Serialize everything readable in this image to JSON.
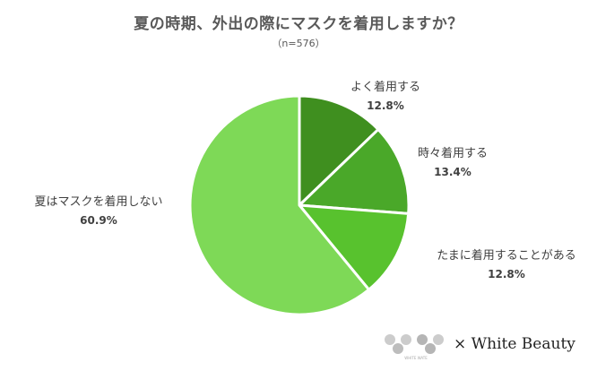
{
  "chart_data": {
    "type": "pie",
    "title": "夏の時期、外出の際にマスクを着用しますか？",
    "subtitle": "（n=576）",
    "categories": [
      "よく着用する",
      "時々着用する",
      "たまに着用することがある",
      "夏はマスクを着用しない"
    ],
    "values": [
      12.8,
      13.4,
      12.8,
      60.9
    ],
    "value_labels": [
      "12.8%",
      "13.4%",
      "12.8%",
      "60.9%"
    ],
    "colors": [
      "#3f8f1f",
      "#4aa829",
      "#58c22e",
      "#7ed957"
    ],
    "start_angle": "12 o'clock, clockwise",
    "legend": "none (data labels outside slices)"
  },
  "footer": {
    "logo_text": "WHITE WATE",
    "brand": "× White Beauty"
  }
}
